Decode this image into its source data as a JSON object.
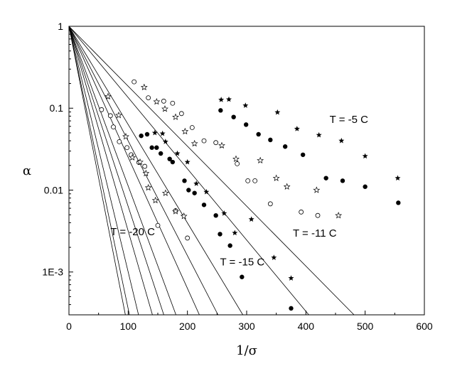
{
  "chart_data": {
    "type": "scatter",
    "xlabel": "1/σ",
    "ylabel": "α",
    "xlim": [
      0,
      600
    ],
    "ylim": [
      0.0003,
      1
    ],
    "yscale": "log",
    "x_ticks": [
      {
        "value": 0,
        "label": "0"
      },
      {
        "value": 100,
        "label": "100"
      },
      {
        "value": 200,
        "label": "200"
      },
      {
        "value": 300,
        "label": "300"
      },
      {
        "value": 400,
        "label": "400"
      },
      {
        "value": 500,
        "label": "500"
      },
      {
        "value": 600,
        "label": "600"
      }
    ],
    "y_ticks": [
      {
        "value": 1,
        "label": "1"
      },
      {
        "value": 0.1,
        "label": "0.1"
      },
      {
        "value": 0.01,
        "label": "0.01"
      },
      {
        "value": 0.001,
        "label": "1E-3"
      }
    ],
    "grid": false,
    "legend": "none",
    "annotations": [
      {
        "text": "T = -5 C",
        "x": 440,
        "y": 0.066
      },
      {
        "text": "T = -11 C",
        "x": 378,
        "y": 0.0027
      },
      {
        "text": "T = -15 C",
        "x": 255,
        "y": 0.0012
      },
      {
        "text": "T = -20 C",
        "x": 70,
        "y": 0.0028
      }
    ],
    "fit_lines": [
      {
        "slope": -7.32
      },
      {
        "slope": -8.7
      },
      {
        "slope": -12.0
      },
      {
        "slope": -14.0
      },
      {
        "slope": -16.0
      },
      {
        "slope": -19.5
      },
      {
        "slope": -22.0
      },
      {
        "slope": -25.0
      },
      {
        "slope": -30.0
      },
      {
        "slope": -34.5
      },
      {
        "slope": -37.0
      }
    ],
    "series": [
      {
        "marker": "star-filled",
        "points": [
          [
            257,
            0.127
          ],
          [
            270,
            0.128
          ],
          [
            298,
            0.108
          ],
          [
            352,
            0.089
          ],
          [
            385,
            0.056
          ],
          [
            422,
            0.047
          ],
          [
            460,
            0.04
          ],
          [
            500,
            0.026
          ],
          [
            555,
            0.014
          ],
          [
            145,
            0.05
          ],
          [
            158,
            0.049
          ],
          [
            163,
            0.039
          ],
          [
            183,
            0.028
          ],
          [
            200,
            0.022
          ],
          [
            215,
            0.012
          ],
          [
            232,
            0.0095
          ],
          [
            262,
            0.0052
          ],
          [
            280,
            0.003
          ],
          [
            308,
            0.0044
          ],
          [
            346,
            0.0015
          ],
          [
            375,
            0.00084
          ]
        ]
      },
      {
        "marker": "circle-filled",
        "points": [
          [
            256,
            0.094
          ],
          [
            278,
            0.078
          ],
          [
            299,
            0.063
          ],
          [
            320,
            0.048
          ],
          [
            340,
            0.041
          ],
          [
            365,
            0.034
          ],
          [
            395,
            0.027
          ],
          [
            434,
            0.014
          ],
          [
            462,
            0.013
          ],
          [
            500,
            0.011
          ],
          [
            556,
            0.007
          ],
          [
            122,
            0.046
          ],
          [
            132,
            0.048
          ],
          [
            140,
            0.033
          ],
          [
            148,
            0.033
          ],
          [
            155,
            0.028
          ],
          [
            170,
            0.024
          ],
          [
            175,
            0.022
          ],
          [
            195,
            0.013
          ],
          [
            202,
            0.01
          ],
          [
            212,
            0.0092
          ],
          [
            228,
            0.0066
          ],
          [
            248,
            0.0049
          ],
          [
            255,
            0.0029
          ],
          [
            272,
            0.0021
          ],
          [
            292,
            0.00087
          ],
          [
            375,
            0.00036
          ]
        ]
      },
      {
        "marker": "circle-open",
        "points": [
          [
            110,
            0.21
          ],
          [
            134,
            0.134
          ],
          [
            160,
            0.122
          ],
          [
            175,
            0.115
          ],
          [
            190,
            0.086
          ],
          [
            208,
            0.058
          ],
          [
            228,
            0.04
          ],
          [
            248,
            0.038
          ],
          [
            284,
            0.021
          ],
          [
            302,
            0.013
          ],
          [
            314,
            0.013
          ],
          [
            340,
            0.0068
          ],
          [
            392,
            0.0054
          ],
          [
            420,
            0.0049
          ],
          [
            55,
            0.096
          ],
          [
            70,
            0.081
          ],
          [
            75,
            0.059
          ],
          [
            85,
            0.039
          ],
          [
            98,
            0.033
          ],
          [
            105,
            0.027
          ],
          [
            118,
            0.0218
          ],
          [
            128,
            0.0195
          ],
          [
            150,
            0.0037
          ],
          [
            180,
            0.0056
          ],
          [
            200,
            0.0026
          ]
        ]
      },
      {
        "marker": "star-open",
        "points": [
          [
            127,
            0.18
          ],
          [
            148,
            0.12
          ],
          [
            162,
            0.098
          ],
          [
            180,
            0.078
          ],
          [
            196,
            0.052
          ],
          [
            212,
            0.037
          ],
          [
            258,
            0.035
          ],
          [
            282,
            0.024
          ],
          [
            323,
            0.023
          ],
          [
            350,
            0.014
          ],
          [
            368,
            0.011
          ],
          [
            418,
            0.01
          ],
          [
            455,
            0.0049
          ],
          [
            66,
            0.139
          ],
          [
            84,
            0.082
          ],
          [
            96,
            0.045
          ],
          [
            107,
            0.025
          ],
          [
            120,
            0.022
          ],
          [
            130,
            0.016
          ],
          [
            134,
            0.0107
          ],
          [
            146,
            0.0075
          ],
          [
            163,
            0.0092
          ],
          [
            180,
            0.0055
          ],
          [
            194,
            0.0048
          ]
        ]
      }
    ]
  }
}
